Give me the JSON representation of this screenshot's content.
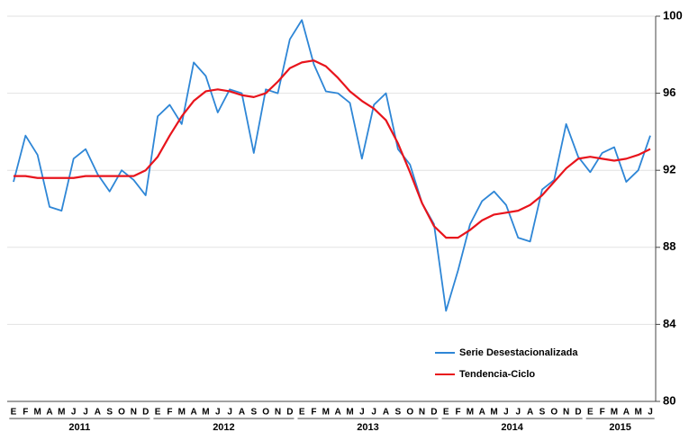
{
  "chart_data": {
    "type": "line",
    "categories": [
      "E",
      "F",
      "M",
      "A",
      "M",
      "J",
      "J",
      "A",
      "S",
      "O",
      "N",
      "D",
      "E",
      "F",
      "M",
      "A",
      "M",
      "J",
      "J",
      "A",
      "S",
      "O",
      "N",
      "D",
      "E",
      "F",
      "M",
      "A",
      "M",
      "J",
      "J",
      "A",
      "S",
      "O",
      "N",
      "D",
      "E",
      "F",
      "M",
      "A",
      "M",
      "J",
      "J",
      "A",
      "S",
      "O",
      "N",
      "D",
      "E",
      "F",
      "M",
      "A",
      "M",
      "J"
    ],
    "years": [
      "2011",
      "2012",
      "2013",
      "2014",
      "2015"
    ],
    "series": [
      {
        "name": "Serie Desestacionalizada",
        "color": "#2e86d6",
        "values": [
          91.4,
          93.8,
          92.8,
          90.1,
          89.9,
          92.6,
          93.1,
          91.8,
          90.9,
          92.0,
          91.5,
          90.7,
          94.8,
          95.4,
          94.4,
          97.6,
          96.9,
          95.0,
          96.2,
          96.0,
          92.9,
          96.2,
          96.0,
          98.8,
          99.8,
          97.5,
          96.1,
          96.0,
          95.5,
          92.6,
          95.4,
          96.0,
          93.1,
          92.3,
          90.3,
          89.2,
          84.7,
          86.8,
          89.2,
          90.4,
          90.9,
          90.2,
          88.5,
          88.3,
          91.0,
          91.5,
          94.4,
          92.7,
          91.9,
          92.9,
          93.2,
          91.4,
          92.0,
          93.8
        ]
      },
      {
        "name": "Tendencia-Ciclo",
        "color": "#e8141c",
        "values": [
          91.7,
          91.7,
          91.6,
          91.6,
          91.6,
          91.6,
          91.7,
          91.7,
          91.7,
          91.7,
          91.7,
          92.0,
          92.7,
          93.8,
          94.8,
          95.6,
          96.1,
          96.2,
          96.1,
          95.9,
          95.8,
          96.0,
          96.6,
          97.3,
          97.6,
          97.7,
          97.4,
          96.8,
          96.1,
          95.6,
          95.2,
          94.6,
          93.4,
          91.9,
          90.3,
          89.1,
          88.5,
          88.5,
          88.9,
          89.4,
          89.7,
          89.8,
          89.9,
          90.2,
          90.7,
          91.4,
          92.1,
          92.6,
          92.7,
          92.6,
          92.5,
          92.6,
          92.8,
          93.1
        ]
      }
    ],
    "ylim": [
      80,
      100
    ],
    "yticks": [
      80,
      84,
      88,
      92,
      96,
      100
    ],
    "grid": true,
    "legend": "lower right"
  }
}
